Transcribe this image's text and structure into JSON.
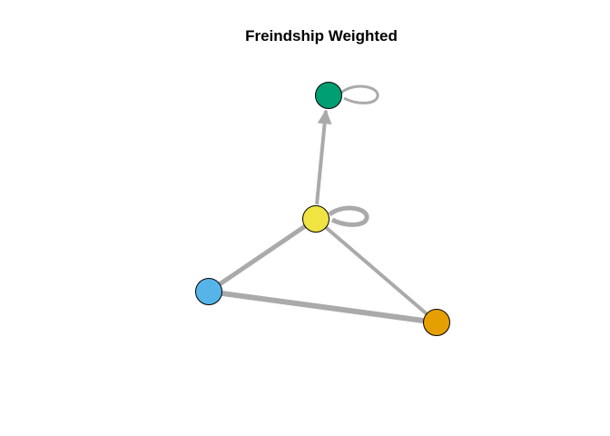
{
  "title": "Freindship Weighted",
  "edge_color": "#aaaaaa",
  "nodes": [
    {
      "id": "n1",
      "icon": "node-circle",
      "color": "#009E73"
    },
    {
      "id": "n2",
      "icon": "node-circle",
      "color": "#F0E442"
    },
    {
      "id": "n3",
      "icon": "node-circle",
      "color": "#56B4E9"
    },
    {
      "id": "n4",
      "icon": "node-circle",
      "color": "#E69F00"
    }
  ],
  "edges": [
    {
      "from": "n2",
      "to": "n1",
      "directed": true
    },
    {
      "from": "n1",
      "to": "n1",
      "loop": true
    },
    {
      "from": "n2",
      "to": "n2",
      "loop": true
    },
    {
      "from": "n2",
      "to": "n3"
    },
    {
      "from": "n2",
      "to": "n4"
    },
    {
      "from": "n3",
      "to": "n4"
    }
  ]
}
